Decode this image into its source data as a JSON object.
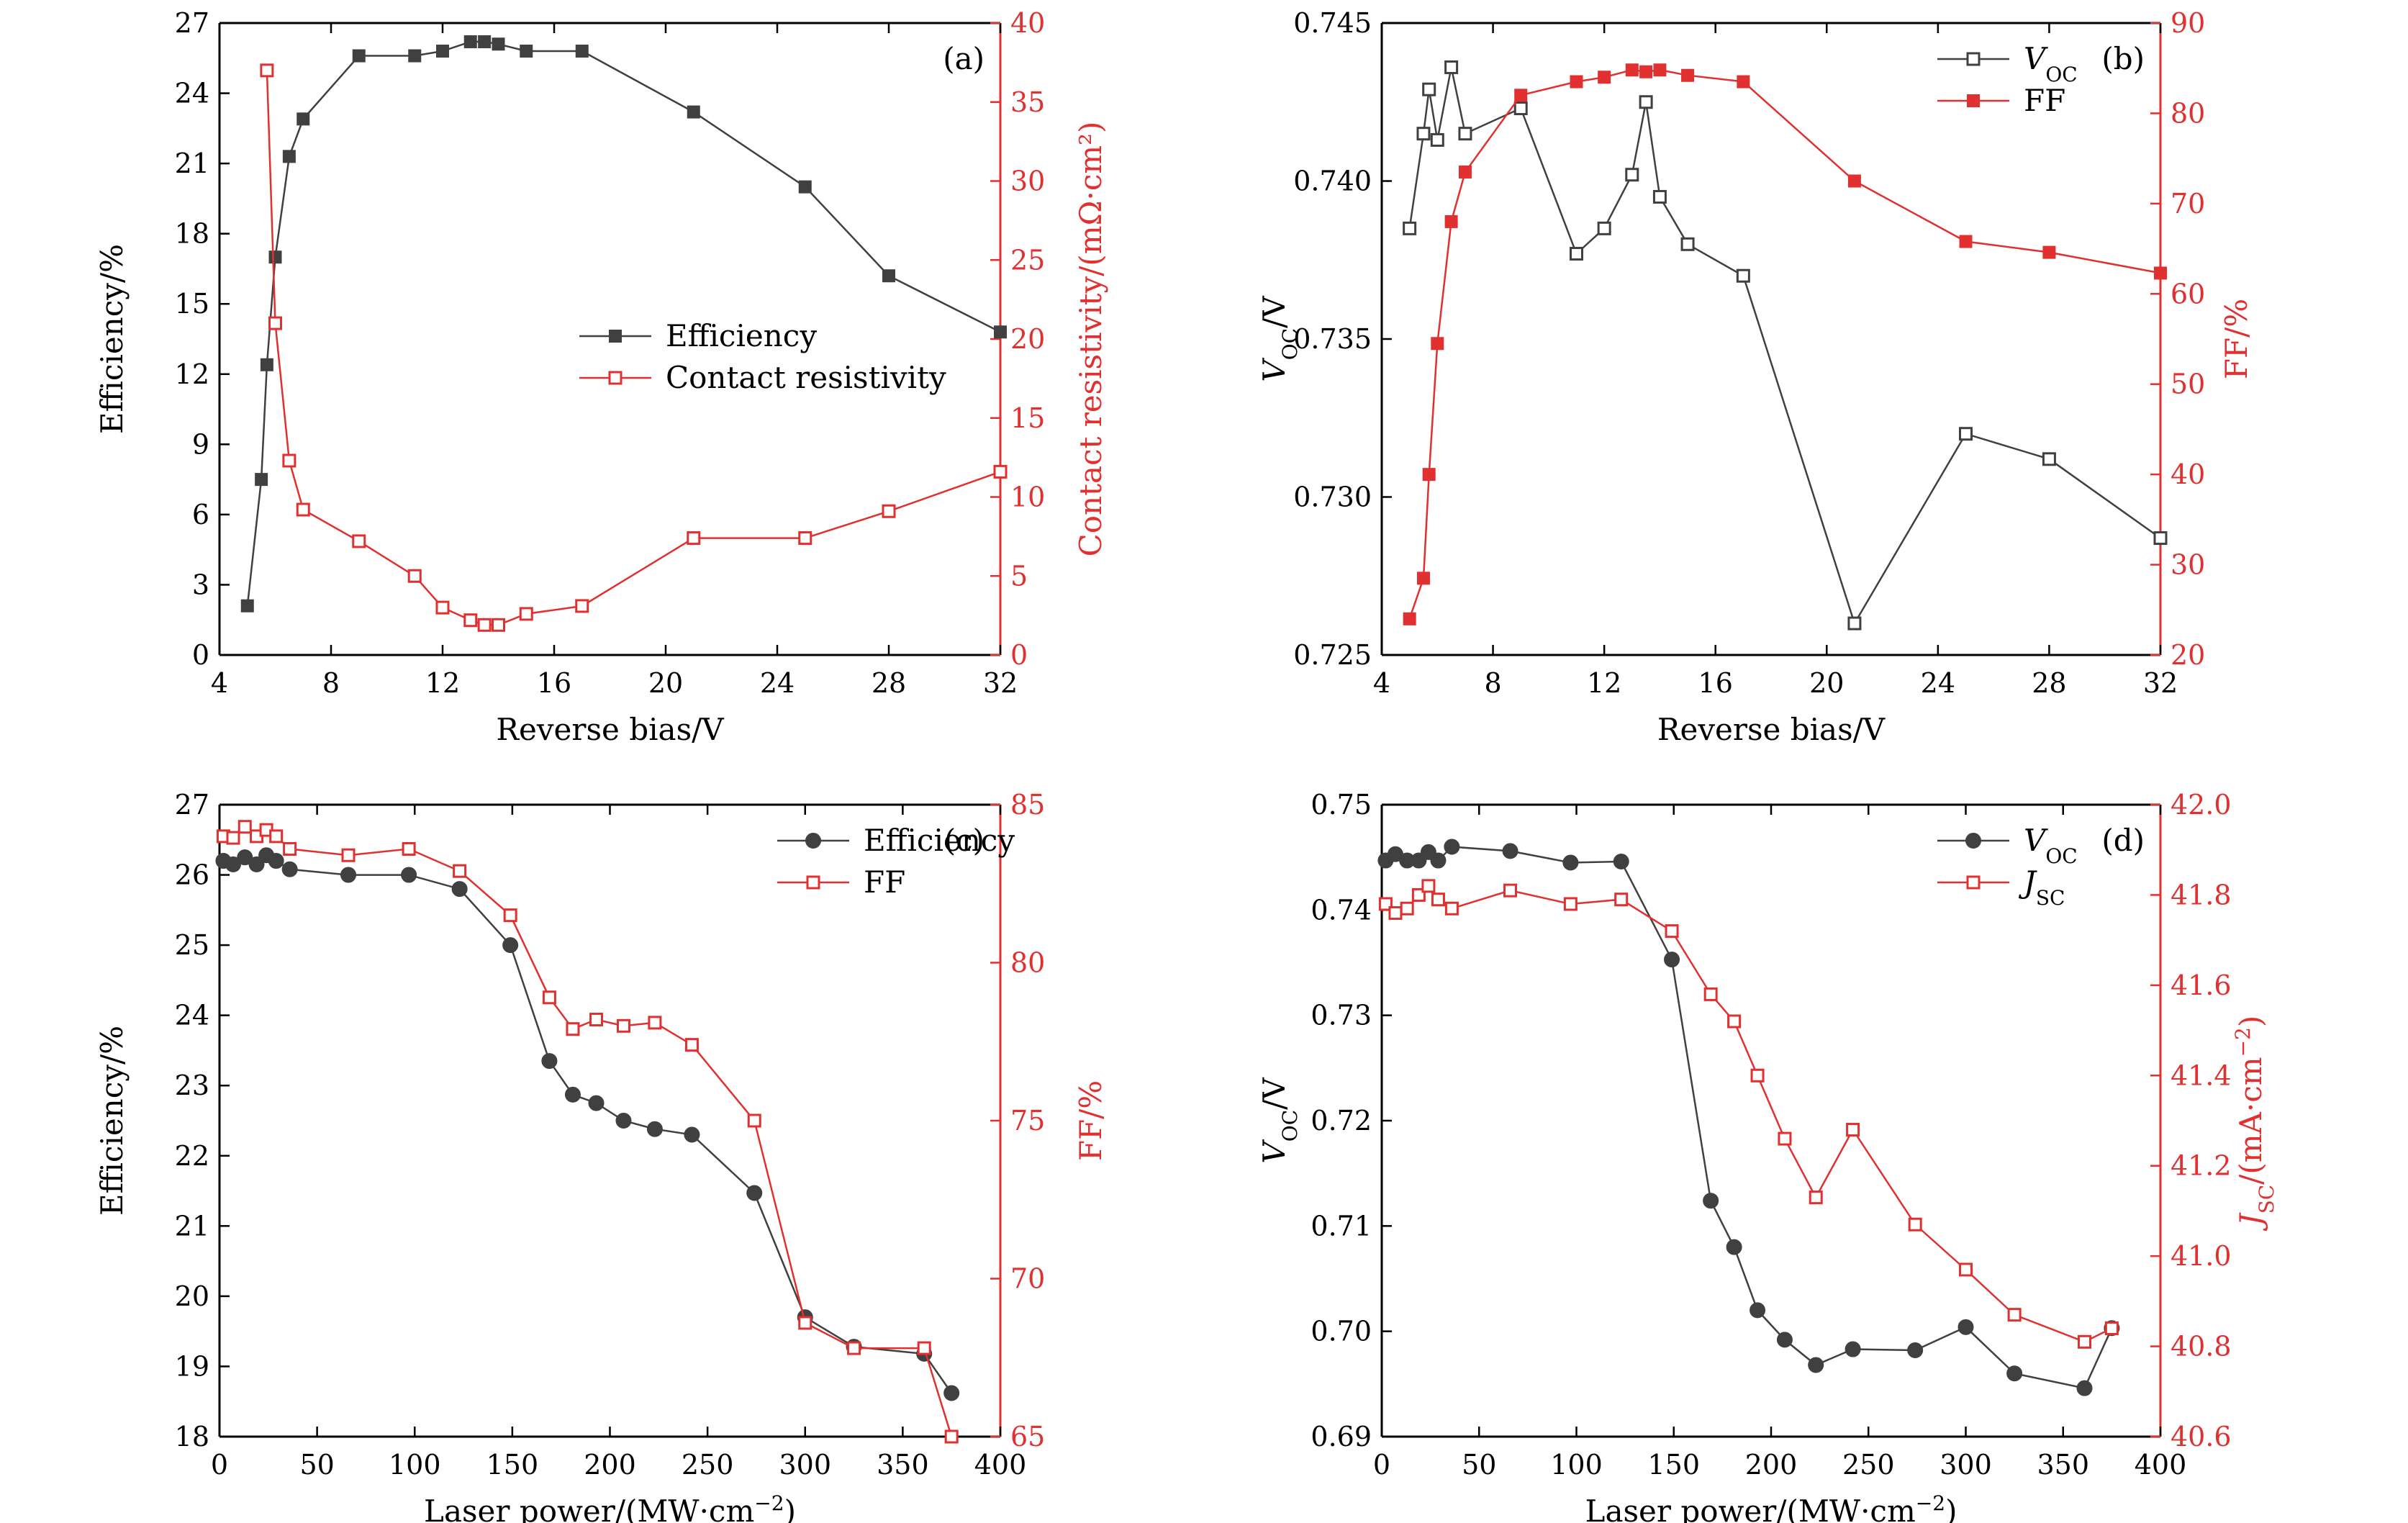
{
  "figure": {
    "colors": {
      "black_series": "#404040",
      "red_series": "#e03030",
      "axis": "#000000"
    }
  },
  "chart_data": [
    {
      "panel": "(a)",
      "type": "line",
      "xlabel": "Reverse bias/V",
      "xlim": [
        4,
        32
      ],
      "xticks": [
        4,
        8,
        12,
        16,
        20,
        24,
        28,
        32
      ],
      "ylabel": "Efficiency/%",
      "ylim": [
        0,
        27
      ],
      "yticks": [
        0,
        3,
        6,
        9,
        12,
        15,
        18,
        21,
        24,
        27
      ],
      "y2label": "Contact resistivity/(mΩ·cm²)",
      "y2lim": [
        0,
        40
      ],
      "y2ticks": [
        0,
        5,
        10,
        15,
        20,
        25,
        30,
        35,
        40
      ],
      "legend_position": "center-right",
      "series": [
        {
          "name": "Efficiency",
          "axis": "left",
          "color": "#404040",
          "marker": "square-filled",
          "x": [
            5,
            5.5,
            5.7,
            6,
            6.5,
            7,
            9,
            11,
            12,
            13,
            13.5,
            14,
            15,
            17,
            21,
            25,
            28,
            32
          ],
          "y": [
            2.1,
            7.5,
            12.4,
            17.0,
            21.3,
            22.9,
            25.6,
            25.6,
            25.8,
            26.2,
            26.2,
            26.1,
            25.8,
            25.8,
            23.2,
            20.0,
            16.2,
            13.8
          ]
        },
        {
          "name": "Contact resistivity",
          "axis": "right",
          "color": "#e03030",
          "marker": "square-open",
          "x": [
            5.7,
            6,
            6.5,
            7,
            9,
            11,
            12,
            13,
            13.5,
            14,
            15,
            17,
            21,
            25,
            28,
            32
          ],
          "y": [
            37.0,
            21.0,
            12.3,
            9.2,
            7.2,
            5.0,
            3.0,
            2.2,
            1.9,
            1.9,
            2.6,
            3.1,
            7.4,
            7.4,
            9.1,
            11.6
          ]
        }
      ]
    },
    {
      "panel": "(b)",
      "type": "line",
      "xlabel": "Reverse bias/V",
      "xlim": [
        4,
        32
      ],
      "xticks": [
        4,
        8,
        12,
        16,
        20,
        24,
        28,
        32
      ],
      "ylabel": "V",
      "ylabel_sub": "OC",
      "ylabel_suffix": "/V",
      "ylim": [
        0.725,
        0.745
      ],
      "yticks": [
        "0.725",
        "0.730",
        "0.735",
        "0.740",
        "0.745"
      ],
      "y2label": "FF/%",
      "y2lim": [
        20,
        90
      ],
      "y2ticks": [
        20,
        30,
        40,
        50,
        60,
        70,
        80,
        90
      ],
      "legend_position": "top-right",
      "series": [
        {
          "name": "V",
          "name_sub": "OC",
          "axis": "left",
          "color": "#404040",
          "marker": "square-open",
          "x": [
            5,
            5.5,
            5.7,
            6,
            6.5,
            7,
            9,
            11,
            12,
            13,
            13.5,
            14,
            15,
            17,
            21,
            25,
            28,
            32
          ],
          "y": [
            0.7385,
            0.7415,
            0.7429,
            0.7413,
            0.7436,
            0.7415,
            0.7423,
            0.7377,
            0.7385,
            0.7402,
            0.7425,
            0.7395,
            0.738,
            0.737,
            0.726,
            0.732,
            0.7312,
            0.7287
          ]
        },
        {
          "name": "FF",
          "axis": "right",
          "color": "#e03030",
          "marker": "square-filled",
          "x": [
            5,
            5.5,
            5.7,
            6,
            6.5,
            7,
            9,
            11,
            12,
            13,
            13.5,
            14,
            15,
            17,
            21,
            25,
            28,
            32
          ],
          "y": [
            24.0,
            28.5,
            40.0,
            54.5,
            68.0,
            73.5,
            82.0,
            83.5,
            84.0,
            84.8,
            84.6,
            84.8,
            84.2,
            83.5,
            72.5,
            65.8,
            64.6,
            62.3
          ]
        }
      ]
    },
    {
      "panel": "(c)",
      "type": "line",
      "xlabel": "Laser power/(MW·cm",
      "xlabel_sup": "−2",
      "xlabel_suffix": ")",
      "xlim": [
        0,
        400
      ],
      "xticks": [
        0,
        50,
        100,
        150,
        200,
        250,
        300,
        350,
        400
      ],
      "ylabel": "Efficiency/%",
      "ylim": [
        18,
        27
      ],
      "yticks": [
        18,
        19,
        20,
        21,
        22,
        23,
        24,
        25,
        26,
        27
      ],
      "y2label": "FF/%",
      "y2lim": [
        65,
        85
      ],
      "y2ticks": [
        65,
        70,
        75,
        80,
        85
      ],
      "legend_position": "top-right",
      "series": [
        {
          "name": "Efficiency",
          "axis": "left",
          "color": "#404040",
          "marker": "circle-filled",
          "x": [
            2,
            7,
            13,
            19,
            24,
            29,
            36,
            66,
            97,
            123,
            149,
            169,
            181,
            193,
            207,
            223,
            242,
            274,
            300,
            325,
            361,
            375
          ],
          "y": [
            26.2,
            26.15,
            26.25,
            26.15,
            26.28,
            26.2,
            26.08,
            26.0,
            26.0,
            25.8,
            25.0,
            23.35,
            22.87,
            22.75,
            22.5,
            22.38,
            22.3,
            21.47,
            19.7,
            19.28,
            19.18,
            18.62
          ]
        },
        {
          "name": "FF",
          "axis": "right",
          "color": "#e03030",
          "marker": "square-open",
          "x": [
            2,
            7,
            13,
            19,
            24,
            29,
            36,
            66,
            97,
            123,
            149,
            169,
            181,
            193,
            207,
            223,
            242,
            274,
            300,
            325,
            361,
            375
          ],
          "y": [
            84.0,
            83.95,
            84.3,
            84.0,
            84.2,
            84.0,
            83.6,
            83.4,
            83.6,
            82.9,
            81.5,
            78.9,
            77.9,
            78.2,
            78.0,
            78.1,
            77.4,
            75.0,
            68.6,
            67.8,
            67.8,
            65.0
          ]
        }
      ]
    },
    {
      "panel": "(d)",
      "type": "line",
      "xlabel": "Laser power/(MW·cm",
      "xlabel_sup": "−2",
      "xlabel_suffix": ")",
      "xlim": [
        0,
        400
      ],
      "xticks": [
        0,
        50,
        100,
        150,
        200,
        250,
        300,
        350,
        400
      ],
      "ylabel": "V",
      "ylabel_sub": "OC",
      "ylabel_suffix": "/V",
      "ylim": [
        0.69,
        0.75
      ],
      "yticks": [
        "0.69",
        "0.70",
        "0.71",
        "0.72",
        "0.73",
        "0.74",
        "0.75"
      ],
      "y2label": "J",
      "y2label_sub": "SC",
      "y2label_suffix": "/(mA·cm",
      "y2label_sup": "−2",
      "y2label_end": ")",
      "y2lim": [
        40.6,
        42.0
      ],
      "y2ticks": [
        "40.6",
        "40.8",
        "41.0",
        "41.2",
        "41.4",
        "41.6",
        "41.8",
        "42.0"
      ],
      "legend_position": "top-right",
      "series": [
        {
          "name": "V",
          "name_sub": "OC",
          "axis": "left",
          "color": "#404040",
          "marker": "circle-filled",
          "x": [
            2,
            7,
            13,
            19,
            24,
            29,
            36,
            66,
            97,
            123,
            149,
            169,
            181,
            193,
            207,
            223,
            242,
            274,
            300,
            325,
            361,
            375
          ],
          "y": [
            0.7447,
            0.7453,
            0.7447,
            0.7447,
            0.7455,
            0.7447,
            0.746,
            0.7456,
            0.7445,
            0.7446,
            0.7353,
            0.7124,
            0.708,
            0.702,
            0.6992,
            0.6968,
            0.6983,
            0.6982,
            0.7004,
            0.696,
            0.6946,
            0.7003
          ]
        },
        {
          "name": "J",
          "name_sub": "SC",
          "axis": "right",
          "color": "#e03030",
          "marker": "square-open",
          "x": [
            2,
            7,
            13,
            19,
            24,
            29,
            36,
            66,
            97,
            123,
            149,
            169,
            181,
            193,
            207,
            223,
            242,
            274,
            300,
            325,
            361,
            375
          ],
          "y": [
            41.78,
            41.76,
            41.77,
            41.8,
            41.82,
            41.79,
            41.77,
            41.81,
            41.78,
            41.79,
            41.72,
            41.58,
            41.52,
            41.4,
            41.26,
            41.13,
            41.28,
            41.07,
            40.97,
            40.87,
            40.81,
            40.84
          ]
        }
      ]
    }
  ]
}
